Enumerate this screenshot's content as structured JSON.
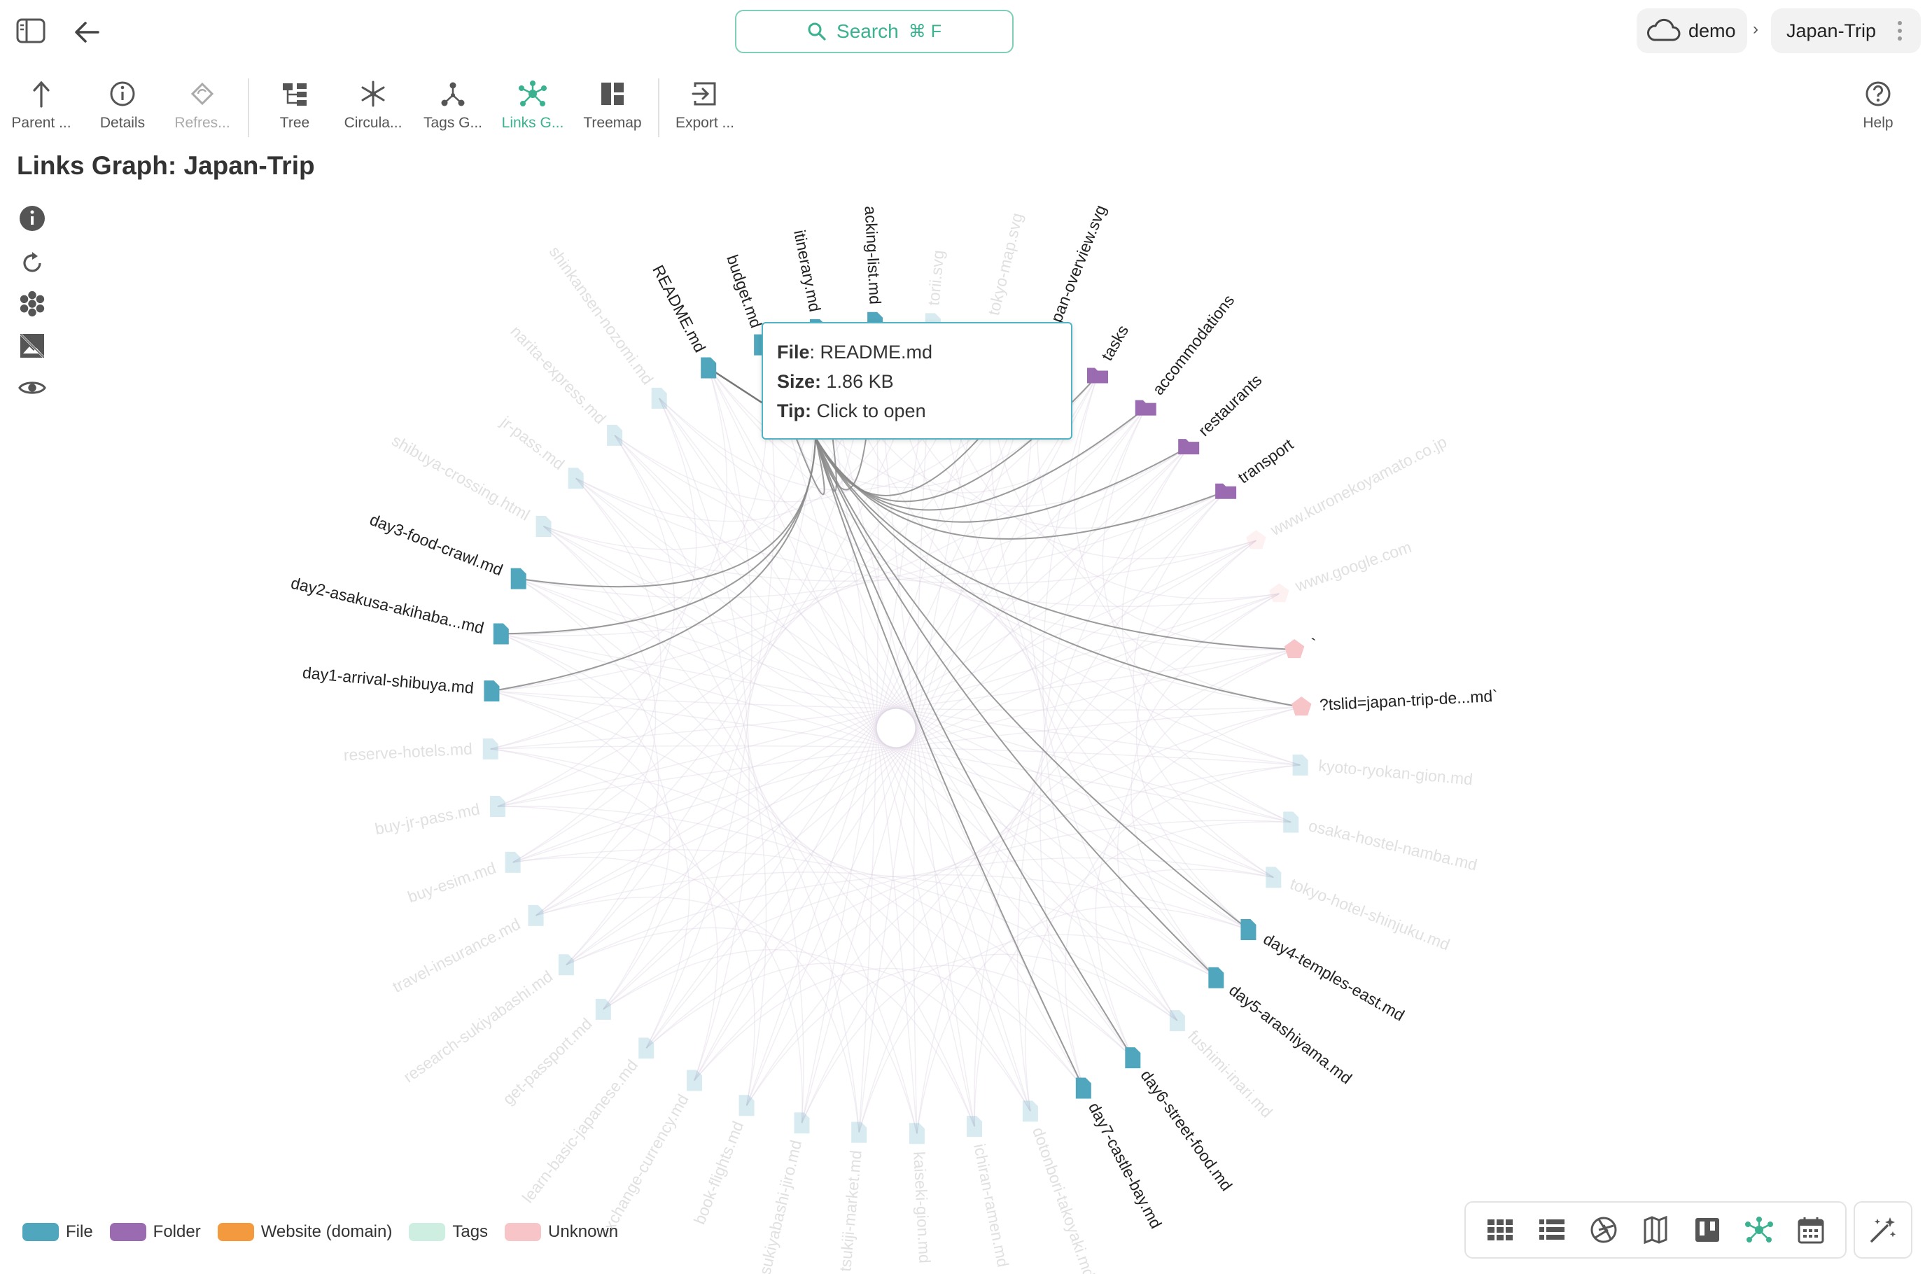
{
  "header": {
    "search_label": "Search",
    "search_shortcut": "⌘ F",
    "location": "demo",
    "separator": "›",
    "current": "Japan-Trip"
  },
  "toolbar": {
    "parent": "Parent ...",
    "details": "Details",
    "refresh": "Refres...",
    "tree": "Tree",
    "circular": "Circula...",
    "tags_graph": "Tags G...",
    "links_graph": "Links G...",
    "treemap": "Treemap",
    "export": "Export ...",
    "help": "Help"
  },
  "page_title": "Links Graph: Japan-Trip",
  "tooltip": {
    "file_label": "File",
    "file_value": ": README.md",
    "size_label": "Size:",
    "size_value": " 1.86 KB",
    "tip_label": "Tip:",
    "tip_value": " Click to open"
  },
  "legend": [
    {
      "label": "File",
      "color": "#4fa6bd"
    },
    {
      "label": "Folder",
      "color": "#9a6bb0"
    },
    {
      "label": "Website (domain)",
      "color": "#f39a3e"
    },
    {
      "label": "Tags",
      "color": "#cdeee0"
    },
    {
      "label": "Unknown",
      "color": "#f7c4c8"
    }
  ],
  "colors": {
    "accent": "#3bb28f",
    "file": "#4fa6bd",
    "folder": "#9a6bb0",
    "unknown": "#f7c4c8"
  },
  "graph": {
    "hub": "README.md",
    "nodes": [
      {
        "label": "README.md",
        "type": "file",
        "active": true
      },
      {
        "label": "budget.md",
        "type": "file",
        "active": true
      },
      {
        "label": "itinerary.md",
        "type": "file",
        "active": true
      },
      {
        "label": "acking-list.md",
        "type": "file",
        "active": true
      },
      {
        "label": "torii.svg",
        "type": "file",
        "active": false
      },
      {
        "label": "tokyo-map.svg",
        "type": "file",
        "active": false
      },
      {
        "label": "japan-overview.svg",
        "type": "file",
        "active": true
      },
      {
        "label": "tasks",
        "type": "folder",
        "active": true
      },
      {
        "label": "accommodations",
        "type": "folder",
        "active": true
      },
      {
        "label": "restaurants",
        "type": "folder",
        "active": true
      },
      {
        "label": "transport",
        "type": "folder",
        "active": true
      },
      {
        "label": "www.kuronekoyamato.co.jp",
        "type": "unknown",
        "active": false
      },
      {
        "label": "www.google.com",
        "type": "unknown",
        "active": false
      },
      {
        "label": "`",
        "type": "unknown",
        "active": true
      },
      {
        "label": "?tslid=japan-trip-de...md`",
        "type": "unknown",
        "active": true
      },
      {
        "label": "kyoto-ryokan-gion.md",
        "type": "file",
        "active": false
      },
      {
        "label": "osaka-hostel-namba.md",
        "type": "file",
        "active": false
      },
      {
        "label": "tokyo-hotel-shinjuku.md",
        "type": "file",
        "active": false
      },
      {
        "label": "day4-temples-east.md",
        "type": "file",
        "active": true
      },
      {
        "label": "day5-arashiyama.md",
        "type": "file",
        "active": true
      },
      {
        "label": "fushimi-inari.md",
        "type": "file",
        "active": false
      },
      {
        "label": "day6-street-food.md",
        "type": "file",
        "active": true
      },
      {
        "label": "day7-castle-bay.md",
        "type": "file",
        "active": true
      },
      {
        "label": "dotonbori-takoyaki.md",
        "type": "file",
        "active": false
      },
      {
        "label": "ichiran-ramen.md",
        "type": "file",
        "active": false
      },
      {
        "label": "kaiseki-gion.md",
        "type": "file",
        "active": false
      },
      {
        "label": "tsukiji-market.md",
        "type": "file",
        "active": false
      },
      {
        "label": "sukiyabashi-jiro.md",
        "type": "file",
        "active": false
      },
      {
        "label": "book-flights.md",
        "type": "file",
        "active": false
      },
      {
        "label": "exchange-currency.md",
        "type": "file",
        "active": false
      },
      {
        "label": "learn-basic-japanese.md",
        "type": "file",
        "active": false
      },
      {
        "label": "get-passport.md",
        "type": "file",
        "active": false
      },
      {
        "label": "research-sukiyabashi.md",
        "type": "file",
        "active": false
      },
      {
        "label": "travel-insurance.md",
        "type": "file",
        "active": false
      },
      {
        "label": "buy-esim.md",
        "type": "file",
        "active": false
      },
      {
        "label": "buy-jr-pass.md",
        "type": "file",
        "active": false
      },
      {
        "label": "reserve-hotels.md",
        "type": "file",
        "active": false
      },
      {
        "label": "day1-arrival-shibuya.md",
        "type": "file",
        "active": true
      },
      {
        "label": "day2-asakusa-akihaba...md",
        "type": "file",
        "active": true
      },
      {
        "label": "day3-food-crawl.md",
        "type": "file",
        "active": true
      },
      {
        "label": "shibuya-crossing.html",
        "type": "file",
        "active": false
      },
      {
        "label": "jr-pass.md",
        "type": "file",
        "active": false
      },
      {
        "label": "narita-express.md",
        "type": "file",
        "active": false
      },
      {
        "label": "shinkansen-nozomi.md",
        "type": "file",
        "active": false
      }
    ]
  }
}
